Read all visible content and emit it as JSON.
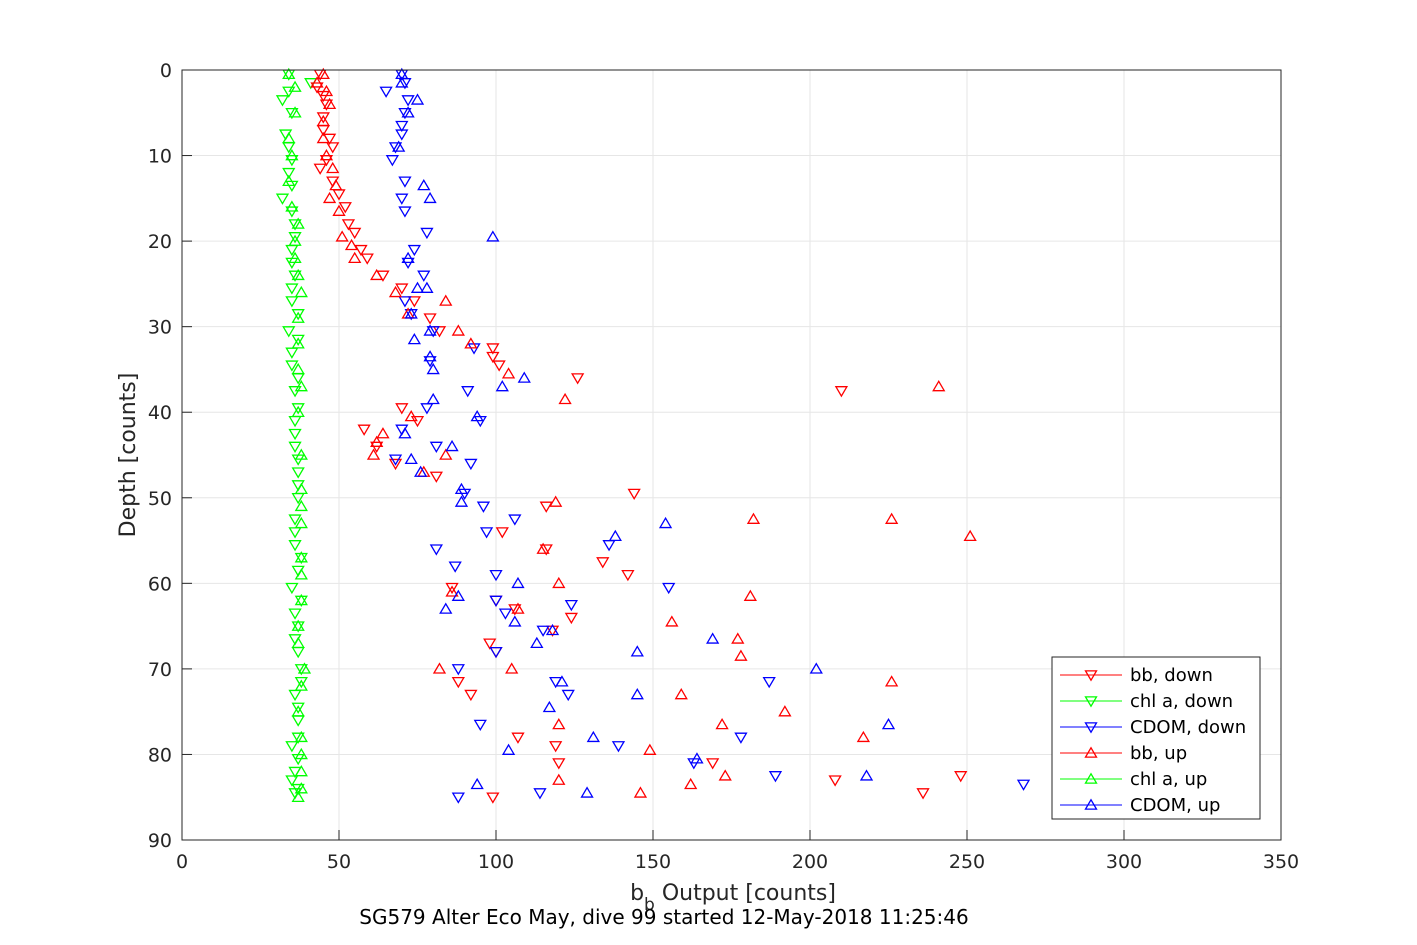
{
  "chart_data": {
    "type": "scatter",
    "title": "SG579 Alter Eco May, dive 99 started 12-May-2018 11:25:46",
    "xlabel_main": "b",
    "xlabel_sub": "b",
    "xlabel_rest": " Output [counts]",
    "ylabel": "Depth [counts]",
    "xlim": [
      0,
      350
    ],
    "ylim": [
      0,
      90
    ],
    "y_reversed": true,
    "xticks": [
      0,
      50,
      100,
      150,
      200,
      250,
      300,
      350
    ],
    "yticks": [
      0,
      10,
      20,
      30,
      40,
      50,
      60,
      70,
      80,
      90
    ],
    "xtick_labels": [
      "0",
      "50",
      "100",
      "150",
      "200",
      "250",
      "300",
      "350"
    ],
    "ytick_labels": [
      "0",
      "10",
      "20",
      "30",
      "40",
      "50",
      "60",
      "70",
      "80",
      "90"
    ],
    "grid": true,
    "legend_position": "bottom-right",
    "series": [
      {
        "name": "bb, down",
        "color": "#ff0000",
        "marker": "triangle-down",
        "points": [
          [
            44,
            0.5
          ],
          [
            43,
            2
          ],
          [
            45,
            3
          ],
          [
            46,
            4
          ],
          [
            45,
            5.5
          ],
          [
            45,
            7
          ],
          [
            47,
            8
          ],
          [
            48,
            9
          ],
          [
            46,
            10.5
          ],
          [
            44,
            11.5
          ],
          [
            48,
            13
          ],
          [
            50,
            14.5
          ],
          [
            52,
            16
          ],
          [
            53,
            18
          ],
          [
            55,
            19
          ],
          [
            57,
            21
          ],
          [
            59,
            22
          ],
          [
            64,
            24
          ],
          [
            70,
            25.5
          ],
          [
            74,
            27
          ],
          [
            79,
            29
          ],
          [
            82,
            30.5
          ],
          [
            99,
            32.5
          ],
          [
            99,
            33.5
          ],
          [
            101,
            34.5
          ],
          [
            126,
            36
          ],
          [
            210,
            37.5
          ],
          [
            70,
            39.5
          ],
          [
            58,
            42
          ],
          [
            75,
            41
          ],
          [
            62,
            44
          ],
          [
            68,
            46
          ],
          [
            81,
            47.5
          ],
          [
            144,
            49.5
          ],
          [
            116,
            51
          ],
          [
            102,
            54
          ],
          [
            116,
            56
          ],
          [
            134,
            57.5
          ],
          [
            142,
            59
          ],
          [
            86,
            60.5
          ],
          [
            100,
            62
          ],
          [
            106,
            63
          ],
          [
            124,
            64
          ],
          [
            118,
            65.5
          ],
          [
            98,
            67
          ],
          [
            100,
            68
          ],
          [
            88,
            71.5
          ],
          [
            92,
            73
          ],
          [
            107,
            78
          ],
          [
            119,
            79
          ],
          [
            120,
            81
          ],
          [
            169,
            81
          ],
          [
            208,
            83
          ],
          [
            248,
            82.5
          ],
          [
            236,
            84.5
          ],
          [
            99,
            85
          ]
        ]
      },
      {
        "name": "chl a, down",
        "color": "#00ff00",
        "marker": "triangle-down",
        "points": [
          [
            34,
            0.5
          ],
          [
            41,
            1.5
          ],
          [
            34,
            2.5
          ],
          [
            32,
            3.5
          ],
          [
            35,
            5
          ],
          [
            33,
            7.5
          ],
          [
            34,
            9
          ],
          [
            35,
            10.5
          ],
          [
            34,
            12
          ],
          [
            35,
            13.5
          ],
          [
            32,
            15
          ],
          [
            35,
            16.5
          ],
          [
            36,
            18
          ],
          [
            36,
            19.5
          ],
          [
            35,
            21
          ],
          [
            35,
            22.5
          ],
          [
            36,
            24
          ],
          [
            35,
            25.5
          ],
          [
            35,
            27
          ],
          [
            37,
            28.5
          ],
          [
            34,
            30.5
          ],
          [
            37,
            31.5
          ],
          [
            35,
            33
          ],
          [
            35,
            34.5
          ],
          [
            37,
            36
          ],
          [
            36,
            37.5
          ],
          [
            37,
            39.5
          ],
          [
            36,
            41
          ],
          [
            36,
            42.5
          ],
          [
            36,
            44
          ],
          [
            37,
            45.5
          ],
          [
            37,
            47
          ],
          [
            37,
            48.5
          ],
          [
            37,
            50
          ],
          [
            36,
            52.5
          ],
          [
            36,
            54
          ],
          [
            36,
            55.5
          ],
          [
            38,
            57
          ],
          [
            37,
            58.5
          ],
          [
            35,
            60.5
          ],
          [
            38,
            62
          ],
          [
            36,
            63.5
          ],
          [
            37,
            65
          ],
          [
            36,
            66.5
          ],
          [
            37,
            68
          ],
          [
            38,
            70
          ],
          [
            38,
            71.5
          ],
          [
            36,
            73
          ],
          [
            37,
            74.5
          ],
          [
            37,
            76
          ],
          [
            37,
            78
          ],
          [
            35,
            79
          ],
          [
            37,
            80.5
          ],
          [
            36,
            82
          ],
          [
            35,
            83
          ],
          [
            37,
            84
          ],
          [
            36,
            84.5
          ]
        ]
      },
      {
        "name": "CDOM, down",
        "color": "#0000ff",
        "marker": "triangle-down",
        "points": [
          [
            70,
            0.5
          ],
          [
            71,
            1.5
          ],
          [
            65,
            2.5
          ],
          [
            72,
            3.5
          ],
          [
            71,
            5
          ],
          [
            70,
            6.5
          ],
          [
            70,
            7.5
          ],
          [
            68,
            9
          ],
          [
            67,
            10.5
          ],
          [
            71,
            13
          ],
          [
            70,
            15
          ],
          [
            71,
            16.5
          ],
          [
            78,
            19
          ],
          [
            74,
            21
          ],
          [
            72,
            22.5
          ],
          [
            77,
            24
          ],
          [
            71,
            27
          ],
          [
            73,
            28.5
          ],
          [
            80,
            30.5
          ],
          [
            93,
            32.5
          ],
          [
            79,
            34
          ],
          [
            91,
            37.5
          ],
          [
            78,
            39.5
          ],
          [
            70,
            42
          ],
          [
            95,
            41
          ],
          [
            81,
            44
          ],
          [
            68,
            45.5
          ],
          [
            92,
            46
          ],
          [
            90,
            49.5
          ],
          [
            96,
            51
          ],
          [
            106,
            52.5
          ],
          [
            97,
            54
          ],
          [
            136,
            55.5
          ],
          [
            81,
            56
          ],
          [
            87,
            58
          ],
          [
            100,
            59
          ],
          [
            155,
            60.5
          ],
          [
            100,
            62
          ],
          [
            124,
            62.5
          ],
          [
            103,
            63.5
          ],
          [
            115,
            65.5
          ],
          [
            88,
            70
          ],
          [
            100,
            68
          ],
          [
            187,
            71.5
          ],
          [
            119,
            71.5
          ],
          [
            123,
            73
          ],
          [
            95,
            76.5
          ],
          [
            178,
            78
          ],
          [
            139,
            79
          ],
          [
            163,
            81
          ],
          [
            189,
            82.5
          ],
          [
            268,
            83.5
          ],
          [
            114,
            84.5
          ],
          [
            88,
            85
          ]
        ]
      },
      {
        "name": "bb, up",
        "color": "#ff0000",
        "marker": "triangle-up",
        "points": [
          [
            45,
            0.5
          ],
          [
            43,
            1.5
          ],
          [
            46,
            2.5
          ],
          [
            47,
            4
          ],
          [
            45,
            6
          ],
          [
            45,
            8
          ],
          [
            46,
            10
          ],
          [
            48,
            11.5
          ],
          [
            49,
            13.5
          ],
          [
            47,
            15
          ],
          [
            50,
            16.5
          ],
          [
            51,
            19.5
          ],
          [
            54,
            20.5
          ],
          [
            55,
            22
          ],
          [
            62,
            24
          ],
          [
            68,
            26
          ],
          [
            72,
            28.5
          ],
          [
            84,
            27
          ],
          [
            88,
            30.5
          ],
          [
            92,
            32
          ],
          [
            104,
            35.5
          ],
          [
            122,
            38.5
          ],
          [
            241,
            37
          ],
          [
            73,
            40.5
          ],
          [
            64,
            42.5
          ],
          [
            61,
            45
          ],
          [
            62,
            43.5
          ],
          [
            84,
            45
          ],
          [
            77,
            47
          ],
          [
            119,
            50.5
          ],
          [
            182,
            52.5
          ],
          [
            226,
            52.5
          ],
          [
            251,
            54.5
          ],
          [
            115,
            56
          ],
          [
            120,
            60
          ],
          [
            86,
            61
          ],
          [
            181,
            61.5
          ],
          [
            107,
            63
          ],
          [
            156,
            64.5
          ],
          [
            177,
            66.5
          ],
          [
            178,
            68.5
          ],
          [
            105,
            70
          ],
          [
            82,
            70
          ],
          [
            226,
            71.5
          ],
          [
            159,
            73
          ],
          [
            192,
            75
          ],
          [
            172,
            76.5
          ],
          [
            217,
            78
          ],
          [
            149,
            79.5
          ],
          [
            120,
            76.5
          ],
          [
            120,
            83
          ],
          [
            173,
            82.5
          ],
          [
            146,
            84.5
          ],
          [
            162,
            83.5
          ]
        ]
      },
      {
        "name": "chl a, up",
        "color": "#00ff00",
        "marker": "triangle-up",
        "points": [
          [
            34,
            0.5
          ],
          [
            36,
            2
          ],
          [
            36,
            5
          ],
          [
            34,
            8
          ],
          [
            35,
            10
          ],
          [
            34,
            13
          ],
          [
            35,
            16
          ],
          [
            37,
            18
          ],
          [
            36,
            20
          ],
          [
            36,
            22
          ],
          [
            37,
            24
          ],
          [
            38,
            26
          ],
          [
            37,
            29
          ],
          [
            37,
            32
          ],
          [
            37,
            35
          ],
          [
            38,
            37
          ],
          [
            37,
            40
          ],
          [
            38,
            45
          ],
          [
            38,
            49
          ],
          [
            38,
            51
          ],
          [
            38,
            53
          ],
          [
            38,
            57
          ],
          [
            38,
            59
          ],
          [
            38,
            62
          ],
          [
            37,
            65
          ],
          [
            37,
            67
          ],
          [
            39,
            70
          ],
          [
            38,
            72
          ],
          [
            37,
            75
          ],
          [
            38,
            78
          ],
          [
            38,
            80
          ],
          [
            38,
            82
          ],
          [
            38,
            84
          ],
          [
            37,
            85
          ]
        ]
      },
      {
        "name": "CDOM, up",
        "color": "#0000ff",
        "marker": "triangle-up",
        "points": [
          [
            70,
            0.5
          ],
          [
            70,
            1.5
          ],
          [
            75,
            3.5
          ],
          [
            72,
            5
          ],
          [
            69,
            9
          ],
          [
            77,
            13.5
          ],
          [
            79,
            15
          ],
          [
            99,
            19.5
          ],
          [
            72,
            22
          ],
          [
            75,
            25.5
          ],
          [
            78,
            25.5
          ],
          [
            73,
            28.5
          ],
          [
            79,
            30.5
          ],
          [
            74,
            31.5
          ],
          [
            79,
            33.5
          ],
          [
            80,
            35
          ],
          [
            109,
            36
          ],
          [
            102,
            37
          ],
          [
            80,
            38.5
          ],
          [
            94,
            40.5
          ],
          [
            71,
            42.5
          ],
          [
            86,
            44
          ],
          [
            73,
            45.5
          ],
          [
            76,
            47
          ],
          [
            89,
            49
          ],
          [
            89,
            50.5
          ],
          [
            154,
            53
          ],
          [
            138,
            54.5
          ],
          [
            107,
            60
          ],
          [
            88,
            61.5
          ],
          [
            84,
            63
          ],
          [
            106,
            64.5
          ],
          [
            118,
            65.5
          ],
          [
            113,
            67
          ],
          [
            169,
            66.5
          ],
          [
            145,
            68
          ],
          [
            202,
            70
          ],
          [
            121,
            71.5
          ],
          [
            145,
            73
          ],
          [
            117,
            74.5
          ],
          [
            225,
            76.5
          ],
          [
            131,
            78
          ],
          [
            104,
            79.5
          ],
          [
            164,
            80.5
          ],
          [
            218,
            82.5
          ],
          [
            94,
            83.5
          ],
          [
            129,
            84.5
          ]
        ]
      }
    ]
  }
}
